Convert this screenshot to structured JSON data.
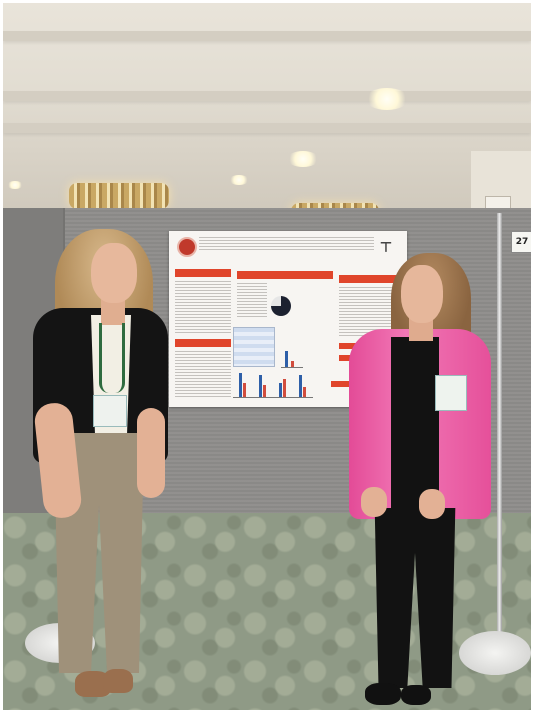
{
  "photo": {
    "scene": "",
    "booth_number": "27"
  },
  "poster": {
    "title_lines": [
      "",
      "",
      ""
    ],
    "section_headers": [
      "",
      "",
      "",
      "",
      "",
      "",
      ""
    ]
  }
}
